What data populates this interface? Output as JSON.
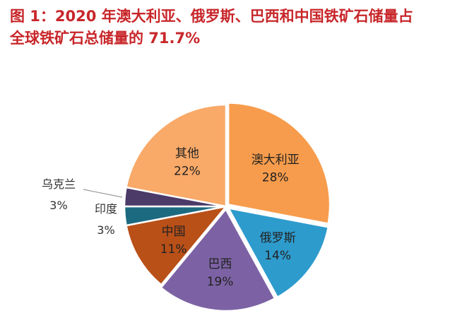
{
  "title": {
    "line1": "图 1：2020 年澳大利亚、俄罗斯、巴西和中国铁矿石储量占",
    "line2": "全球铁矿石总储量的 71.7%"
  },
  "chart_data": {
    "type": "pie",
    "start_angle_deg": 0,
    "direction": "clockwise",
    "slices": [
      {
        "name": "澳大利亚",
        "value": 28,
        "label": "28%",
        "color": "#f79c4c"
      },
      {
        "name": "俄罗斯",
        "value": 14,
        "label": "14%",
        "color": "#2e9bcd"
      },
      {
        "name": "巴西",
        "value": 19,
        "label": "19%",
        "color": "#7c62a4"
      },
      {
        "name": "中国",
        "value": 11,
        "label": "11%",
        "color": "#b95018"
      },
      {
        "name": "印度",
        "value": 3,
        "label": "3%",
        "color": "#1c6a80"
      },
      {
        "name": "乌克兰",
        "value": 3,
        "label": "3%",
        "color": "#4c3a68"
      },
      {
        "name": "其他",
        "value": 22,
        "label": "22%",
        "color": "#f9a968"
      }
    ],
    "legend": "none"
  }
}
